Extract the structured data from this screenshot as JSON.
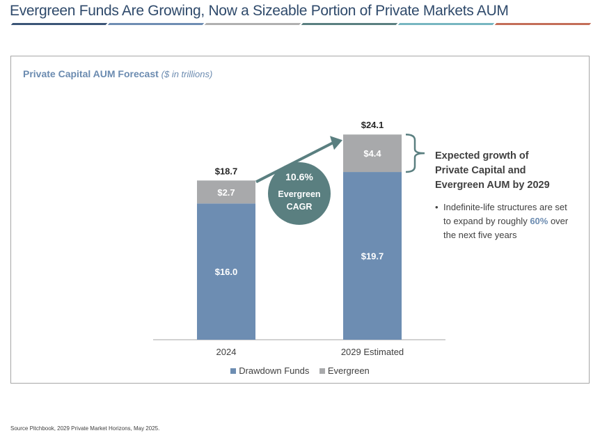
{
  "header": {
    "title": "Evergreen Funds Are Growing, Now a Sizeable Portion of Private Markets AUM",
    "rule_colors": [
      "#3b5577",
      "#6f8db3",
      "#b0b0b0",
      "#5a7f80",
      "#77b6c1",
      "#c46e58"
    ]
  },
  "chart_data": {
    "type": "bar",
    "stacked": true,
    "title": "Private Capital AUM Forecast",
    "subtitle": "($ in trillions)",
    "categories": [
      "2024",
      "2029 Estimated"
    ],
    "series": [
      {
        "name": "Drawdown Funds",
        "values": [
          16.0,
          19.7
        ],
        "labels": [
          "$16.0",
          "$19.7"
        ],
        "color": "#6d8db2"
      },
      {
        "name": "Evergreen",
        "values": [
          2.7,
          4.4
        ],
        "labels": [
          "$2.7",
          "$4.4"
        ],
        "color": "#a8a9ab"
      }
    ],
    "totals": [
      "$18.7",
      "$24.1"
    ],
    "ylim": [
      0,
      26
    ],
    "grid": false,
    "legend": "bottom"
  },
  "cagr": {
    "value": "10.6%",
    "line1": "Evergreen",
    "line2": "CAGR",
    "color": "#5a7f80"
  },
  "annotation": {
    "heading_lines": [
      "Expected growth of",
      "Private Capital and",
      "Evergreen AUM by 2029"
    ],
    "bullet_pre": "Indefinite-life structures are set to expand by roughly ",
    "bullet_highlight": "60%",
    "bullet_post": " over the next five years"
  },
  "source": "Source Pitchbook, 2029 Private Market Horizons, May 2025."
}
